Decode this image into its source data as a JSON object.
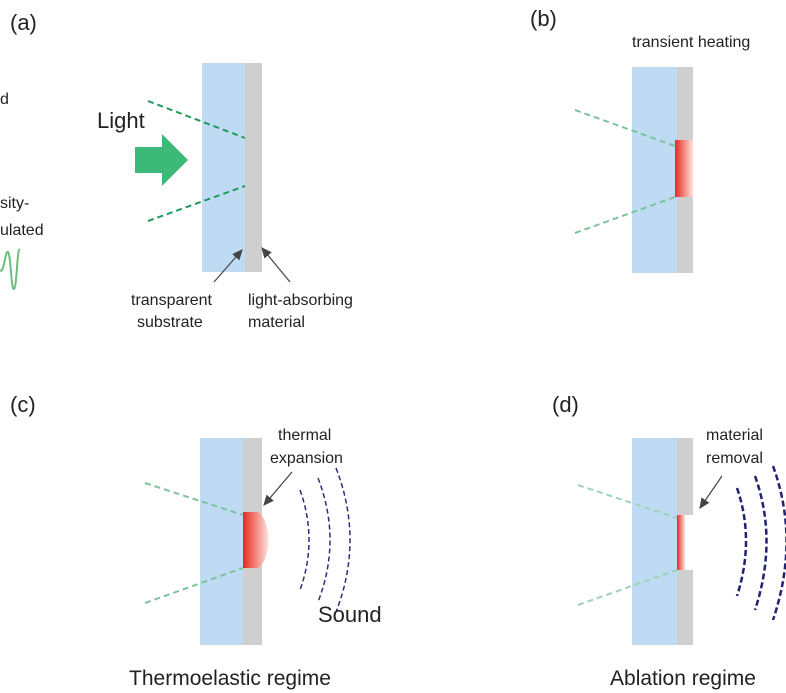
{
  "panel_a": {
    "label": "(a)",
    "cropped_texts": [
      "d",
      "sity-",
      "ulated"
    ],
    "light": "Light",
    "substrate_label": [
      "transparent",
      "substrate"
    ],
    "absorber_label": [
      "light-absorbing",
      "material"
    ]
  },
  "panel_b": {
    "label": "(b)",
    "annotation": "transient heating"
  },
  "panel_c": {
    "label": "(c)",
    "annotation": [
      "thermal",
      "expansion"
    ],
    "sound": "Sound",
    "caption": "Thermoelastic regime"
  },
  "panel_d": {
    "label": "(d)",
    "annotation": [
      "material",
      "removal"
    ],
    "caption": "Ablation regime"
  }
}
